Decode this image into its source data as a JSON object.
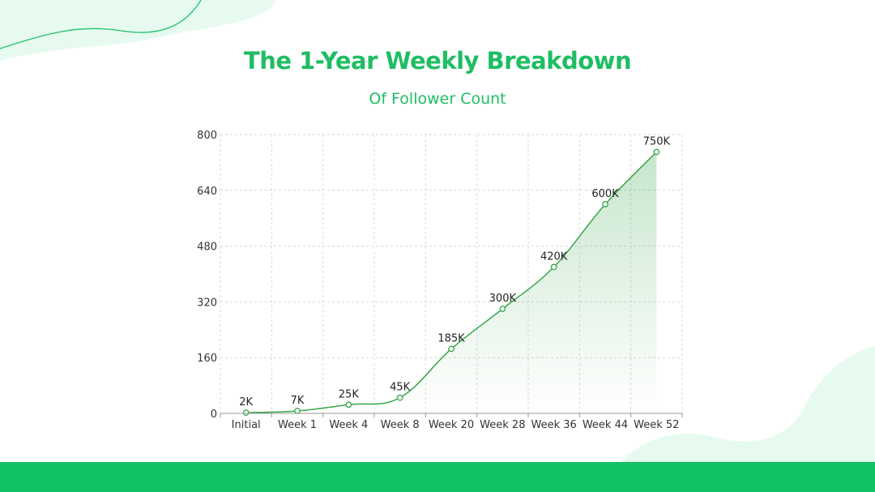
{
  "colors": {
    "accent": "#1fc16b",
    "title": "#1fbd63",
    "line": "#38a64a",
    "blob": "#e6faf0",
    "grid": "#d8d8d8",
    "footer": "#12c164"
  },
  "header": {
    "title": "The 1-Year Weekly Breakdown",
    "subtitle": "Of Follower Count"
  },
  "chart_data": {
    "type": "line",
    "title": "The 1-Year Weekly Breakdown",
    "subtitle": "Of Follower Count",
    "categories": [
      "Initial",
      "Week 1",
      "Week 4",
      "Week 8",
      "Week 20",
      "Week 28",
      "Week 36",
      "Week 44",
      "Week 52"
    ],
    "values": [
      2,
      7,
      25,
      45,
      185,
      300,
      420,
      600,
      750
    ],
    "data_labels": [
      "2K",
      "7K",
      "25K",
      "45K",
      "185K",
      "300K",
      "420K",
      "600K",
      "750K"
    ],
    "ylim": [
      0,
      800
    ],
    "yticks": [
      0,
      160,
      320,
      480,
      640,
      800
    ],
    "xlabel": "",
    "ylabel": "",
    "grid": true,
    "smooth": true,
    "area_fill": true
  }
}
